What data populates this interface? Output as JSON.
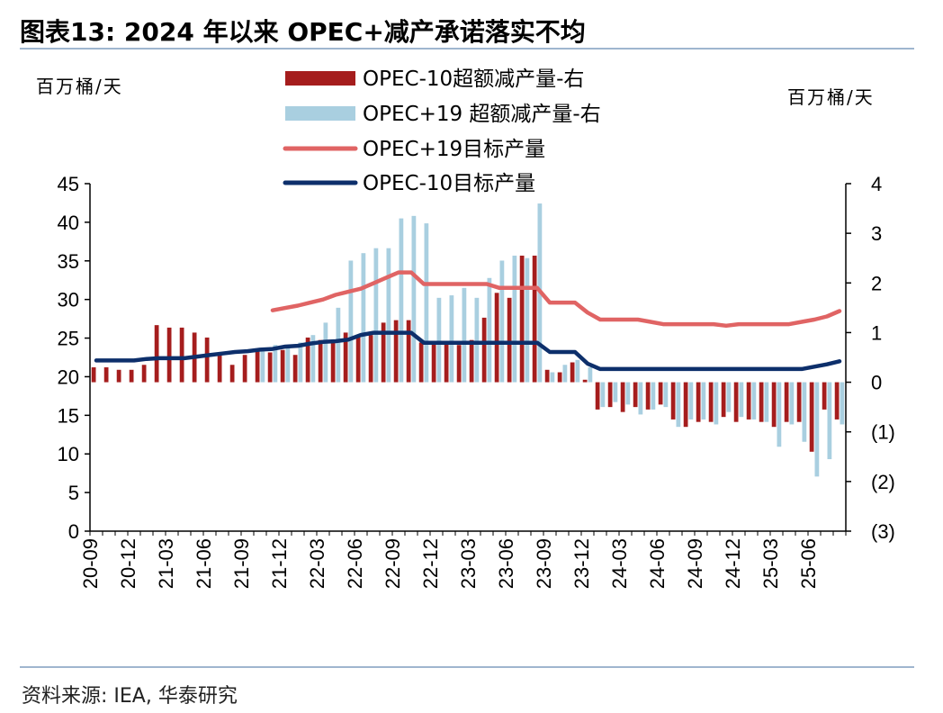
{
  "figure_title": "图表13:  2024 年以来 OPEC+减产承诺落实不均",
  "source": "资料来源: IEA, 华泰研究",
  "colors": {
    "opec10_bar": "#a51d1d",
    "opec19_bar": "#a9cfe0",
    "opec19_line": "#e06464",
    "opec10_line": "#0d2f6b",
    "rule": "#9fb6cf"
  },
  "chart_data": {
    "type": "bar+line",
    "left_axis": {
      "label": "百万桶/天",
      "ylim": [
        0,
        45
      ],
      "ticks": [
        "0",
        "5",
        "10",
        "15",
        "20",
        "25",
        "30",
        "35",
        "40",
        "45"
      ]
    },
    "right_axis": {
      "label": "百万桶/天",
      "ylim": [
        -3,
        4
      ],
      "ticks": [
        "(3)",
        "(2)",
        "(1)",
        "0",
        "1",
        "2",
        "3",
        "4"
      ]
    },
    "x_ticks": [
      "20-09",
      "20-12",
      "21-03",
      "21-06",
      "21-09",
      "21-12",
      "22-03",
      "22-06",
      "22-09",
      "22-12",
      "23-03",
      "23-06",
      "23-09",
      "23-12",
      "24-03",
      "24-06",
      "24-09",
      "24-12",
      "25-03",
      "25-06"
    ],
    "categories": [
      "20-09",
      "20-10",
      "20-11",
      "20-12",
      "21-01",
      "21-02",
      "21-03",
      "21-04",
      "21-05",
      "21-06",
      "21-07",
      "21-08",
      "21-09",
      "21-10",
      "21-11",
      "21-12",
      "22-01",
      "22-02",
      "22-03",
      "22-04",
      "22-05",
      "22-06",
      "22-07",
      "22-08",
      "22-09",
      "22-10",
      "22-11",
      "22-12",
      "23-01",
      "23-02",
      "23-03",
      "23-04",
      "23-05",
      "23-06",
      "23-07",
      "23-08",
      "23-09",
      "23-10",
      "23-11",
      "23-12",
      "24-01",
      "24-02",
      "24-03",
      "24-04",
      "24-05",
      "24-06",
      "24-07",
      "24-08",
      "24-09",
      "24-10",
      "24-11",
      "24-12",
      "25-01",
      "25-02",
      "25-03",
      "25-04",
      "25-05",
      "25-06",
      "25-07",
      "25-08"
    ],
    "series": [
      {
        "name": "OPEC-10超额减产量-右",
        "type": "bar",
        "axis": "right",
        "values": [
          0.3,
          0.3,
          0.25,
          0.25,
          0.35,
          1.15,
          1.1,
          1.1,
          1.0,
          0.9,
          0.6,
          0.35,
          0.55,
          0.65,
          0.6,
          0.65,
          0.55,
          0.9,
          0.85,
          0.8,
          1.0,
          0.95,
          0.95,
          1.2,
          1.25,
          1.25,
          0.8,
          0.8,
          0.8,
          0.75,
          0.85,
          1.3,
          1.8,
          1.7,
          2.55,
          2.55,
          0.25,
          0.2,
          0.4,
          0.05,
          -0.55,
          -0.5,
          -0.6,
          -0.5,
          -0.55,
          -0.45,
          -0.75,
          -0.9,
          -0.8,
          -0.8,
          -0.7,
          -0.8,
          -0.75,
          -0.8,
          -0.9,
          -0.8,
          -0.8,
          -1.4,
          -0.55,
          -0.75
        ]
      },
      {
        "name": "OPEC+19 超额减产量-右",
        "type": "bar",
        "axis": "right",
        "values": [
          null,
          null,
          null,
          null,
          null,
          null,
          null,
          null,
          null,
          null,
          null,
          null,
          null,
          0.65,
          0.75,
          0.7,
          0.8,
          0.95,
          1.2,
          1.5,
          2.45,
          2.6,
          2.7,
          2.7,
          3.3,
          3.35,
          3.2,
          1.7,
          1.75,
          1.9,
          1.7,
          2.1,
          2.45,
          2.55,
          2.5,
          3.6,
          0.2,
          0.35,
          0.45,
          0.3,
          -0.5,
          -0.4,
          -0.45,
          -0.65,
          -0.55,
          -0.5,
          -0.9,
          -0.75,
          -0.75,
          -0.85,
          -0.6,
          -0.7,
          -0.75,
          -0.8,
          -1.3,
          -0.85,
          -1.2,
          -1.9,
          -1.55,
          -0.85
        ]
      },
      {
        "name": "OPEC+19目标产量",
        "type": "line",
        "axis": "left",
        "values": [
          null,
          null,
          null,
          null,
          null,
          null,
          null,
          null,
          null,
          null,
          null,
          null,
          null,
          null,
          28.6,
          28.9,
          29.2,
          29.6,
          30.0,
          30.6,
          31.0,
          31.4,
          32.1,
          32.8,
          33.5,
          33.5,
          32.0,
          32.0,
          32.0,
          32.0,
          32.0,
          32.0,
          31.5,
          31.5,
          31.5,
          31.5,
          29.6,
          29.6,
          29.6,
          28.3,
          27.4,
          27.4,
          27.4,
          27.4,
          27.1,
          26.8,
          26.8,
          26.8,
          26.8,
          26.8,
          26.6,
          26.8,
          26.8,
          26.8,
          26.8,
          26.8,
          27.1,
          27.4,
          27.8,
          28.5
        ]
      },
      {
        "name": "OPEC-10目标产量",
        "type": "line",
        "axis": "left",
        "values": [
          22.1,
          22.1,
          22.1,
          22.1,
          22.3,
          22.4,
          22.4,
          22.4,
          22.6,
          22.8,
          23.0,
          23.2,
          23.3,
          23.5,
          23.6,
          23.9,
          24.0,
          24.3,
          24.5,
          24.6,
          24.8,
          25.4,
          25.7,
          25.7,
          25.7,
          25.7,
          24.4,
          24.4,
          24.4,
          24.4,
          24.4,
          24.4,
          24.4,
          24.4,
          24.4,
          24.4,
          23.2,
          23.2,
          23.2,
          21.7,
          21.0,
          21.0,
          21.0,
          21.0,
          21.0,
          21.0,
          21.0,
          21.0,
          21.0,
          21.0,
          21.0,
          21.0,
          21.0,
          21.0,
          21.0,
          21.0,
          21.0,
          21.3,
          21.6,
          22.0
        ]
      }
    ]
  }
}
